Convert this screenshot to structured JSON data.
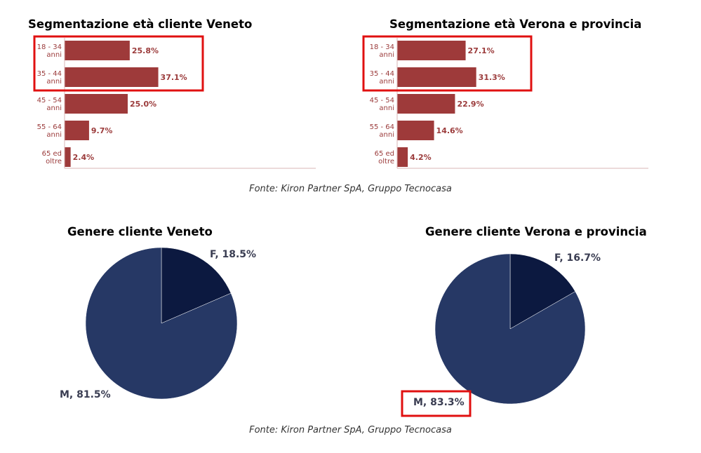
{
  "colors": {
    "bar": "#9e3a3a",
    "female": "#0c1940",
    "male": "#263865",
    "highlight": "#e01010",
    "label": "#9b3b3b"
  },
  "source_top": "Fonte: Kiron Partner SpA, Gruppo Tecnocasa",
  "source_bottom": "Fonte: Kiron Partner SpA, Gruppo Tecnocasa",
  "chart_data": [
    {
      "type": "bar",
      "orientation": "horizontal",
      "title": "Segmentazione età cliente Veneto",
      "categories": [
        [
          "18 - 34",
          "anni"
        ],
        [
          "35 - 44",
          "anni"
        ],
        [
          "45 - 54",
          "anni"
        ],
        [
          "55 - 64",
          "anni"
        ],
        [
          "65 ed",
          "oltre"
        ]
      ],
      "values": [
        25.8,
        37.1,
        25.0,
        9.7,
        2.4
      ],
      "value_labels": [
        "25.8%",
        "37.1%",
        "25.0%",
        "9.7%",
        "2.4%"
      ],
      "highlighted_categories": [
        0,
        1
      ]
    },
    {
      "type": "bar",
      "orientation": "horizontal",
      "title": "Segmentazione età Verona e provincia",
      "categories": [
        [
          "18 - 34",
          "anni"
        ],
        [
          "35 - 44",
          "anni"
        ],
        [
          "45 - 54",
          "anni"
        ],
        [
          "55 - 64",
          "anni"
        ],
        [
          "65 ed",
          "oltre"
        ]
      ],
      "values": [
        27.1,
        31.3,
        22.9,
        14.6,
        4.2
      ],
      "value_labels": [
        "27.1%",
        "31.3%",
        "22.9%",
        "14.6%",
        "4.2%"
      ],
      "highlighted_categories": [
        0,
        1
      ]
    },
    {
      "type": "pie",
      "title": "Genere cliente Veneto",
      "slices": [
        {
          "label": "F, 18.5%",
          "value": 18.5
        },
        {
          "label": "M, 81.5%",
          "value": 81.5
        }
      ]
    },
    {
      "type": "pie",
      "title": "Genere cliente Verona e provincia",
      "slices": [
        {
          "label": "F, 16.7%",
          "value": 16.7
        },
        {
          "label": "M, 83.3%",
          "value": 83.3,
          "highlighted": true
        }
      ]
    }
  ]
}
